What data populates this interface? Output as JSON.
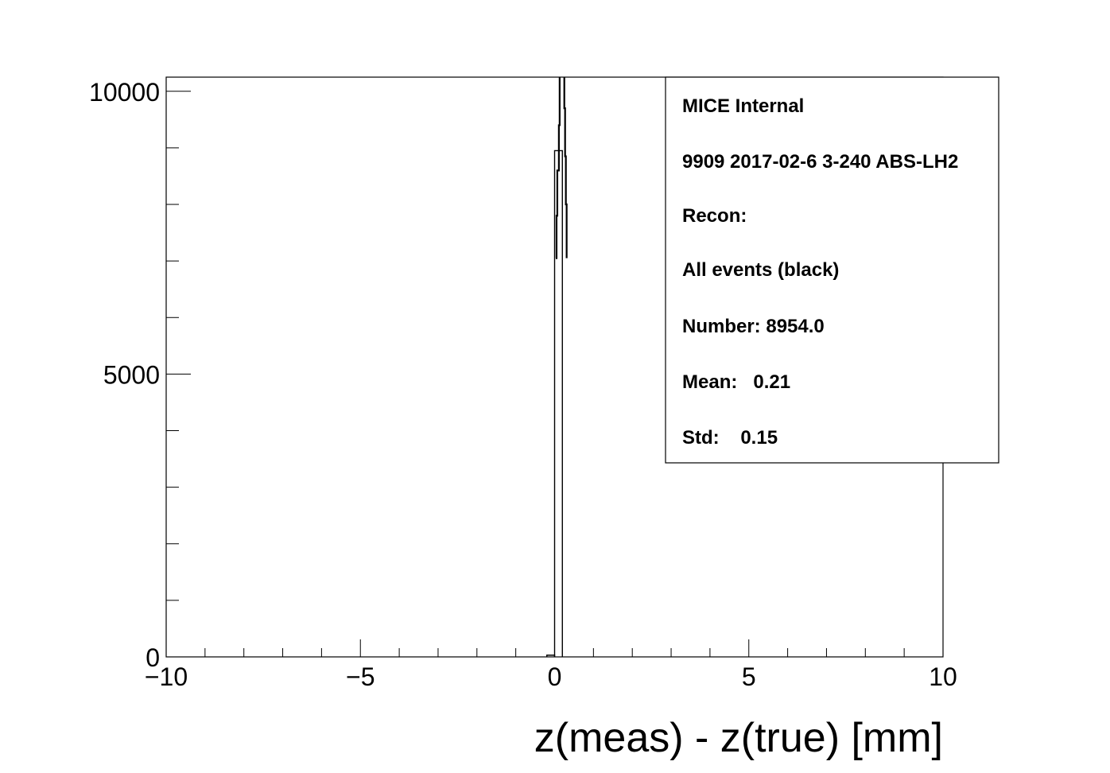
{
  "chart_data": {
    "type": "bar",
    "title": "",
    "xlabel": "z(meas) - z(true) [mm]",
    "ylabel": "",
    "xlim": [
      -10,
      10
    ],
    "ylim": [
      0,
      10250
    ],
    "grid": false,
    "x_ticks": [
      -10,
      -5,
      0,
      5,
      10
    ],
    "x_tick_labels": [
      "−10",
      "−5",
      "0",
      "5",
      "10"
    ],
    "y_ticks": [
      0,
      5000,
      10000
    ],
    "y_tick_labels": [
      "0",
      "5000",
      "10000"
    ],
    "series": [
      {
        "bins": [
          {
            "x0": -0.2,
            "x1": 0.0,
            "value": 30
          },
          {
            "x0": 0.0,
            "x1": 0.2,
            "value": 8950
          }
        ],
        "segments": [
          [
            {
              "x": 0.03,
              "y": 7050
            },
            {
              "x": 0.05,
              "y": 7050
            },
            {
              "x": 0.05,
              "y": 7800
            },
            {
              "x": 0.07,
              "y": 7800
            },
            {
              "x": 0.07,
              "y": 8600
            },
            {
              "x": 0.11,
              "y": 8600
            },
            {
              "x": 0.11,
              "y": 9400
            },
            {
              "x": 0.13,
              "y": 9400
            },
            {
              "x": 0.13,
              "y": 10250
            }
          ],
          [
            {
              "x": 0.25,
              "y": 10250
            },
            {
              "x": 0.25,
              "y": 9700
            },
            {
              "x": 0.27,
              "y": 9700
            },
            {
              "x": 0.27,
              "y": 8850
            },
            {
              "x": 0.29,
              "y": 8850
            },
            {
              "x": 0.29,
              "y": 8000
            },
            {
              "x": 0.31,
              "y": 8000
            },
            {
              "x": 0.31,
              "y": 7050
            }
          ]
        ]
      }
    ],
    "stats_box": {
      "lines": [
        "MICE Internal",
        "9909 2017-02-6 3-240 ABS-LH2",
        "Recon:",
        "All events (black)",
        "Number: 8954.0",
        "Mean:   0.21",
        "Std:    0.15"
      ]
    }
  }
}
